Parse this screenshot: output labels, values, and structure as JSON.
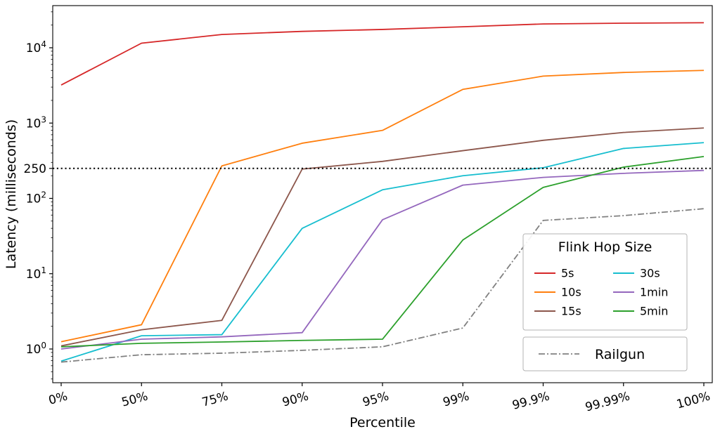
{
  "chart_data": {
    "type": "line",
    "title": "",
    "xlabel": "Percentile",
    "ylabel": "Latency (milliseconds)",
    "x_categories": [
      "0%",
      "50%",
      "75%",
      "90%",
      "95%",
      "99%",
      "99.9%",
      "99.99%",
      "100%"
    ],
    "y_scale": "log",
    "ylim": [
      0.36,
      36000
    ],
    "grid": false,
    "y_major_ticks": [
      {
        "value": 1,
        "label_base": "10",
        "label_exp": "0"
      },
      {
        "value": 10,
        "label_base": "10",
        "label_exp": "1"
      },
      {
        "value": 100,
        "label_base": "10",
        "label_exp": "2"
      },
      {
        "value": 250,
        "label": "250"
      },
      {
        "value": 1000,
        "label_base": "10",
        "label_exp": "3"
      },
      {
        "value": 10000,
        "label_base": "10",
        "label_exp": "4"
      }
    ],
    "threshold_line": {
      "value": 250,
      "style": "dotted",
      "color": "#111111"
    },
    "series": [
      {
        "name": "5s",
        "color": "#d62728",
        "dash": "solid",
        "values": [
          3200,
          11500,
          15000,
          16500,
          17500,
          19000,
          20700,
          21200,
          21500
        ]
      },
      {
        "name": "10s",
        "color": "#ff7f0e",
        "dash": "solid",
        "values": [
          1.25,
          2.1,
          270,
          540,
          800,
          2800,
          4200,
          4700,
          5000
        ]
      },
      {
        "name": "15s",
        "color": "#8c564b",
        "dash": "solid",
        "values": [
          1.1,
          1.8,
          2.4,
          245,
          310,
          430,
          590,
          750,
          860
        ]
      },
      {
        "name": "30s",
        "color": "#17becf",
        "dash": "solid",
        "values": [
          0.69,
          1.5,
          1.55,
          40,
          130,
          200,
          255,
          460,
          550
        ]
      },
      {
        "name": "1min",
        "color": "#9467bd",
        "dash": "solid",
        "values": [
          1.0,
          1.35,
          1.45,
          1.65,
          52,
          150,
          190,
          215,
          235
        ]
      },
      {
        "name": "5min",
        "color": "#2ca02c",
        "dash": "solid",
        "values": [
          1.07,
          1.19,
          1.24,
          1.3,
          1.35,
          28,
          140,
          260,
          360
        ]
      },
      {
        "name": "Railgun",
        "color": "#808080",
        "dash": "dashdot",
        "values": [
          0.67,
          0.84,
          0.88,
          0.96,
          1.07,
          1.9,
          51,
          59,
          73
        ]
      }
    ],
    "legend": {
      "title": "Flink Hop Size",
      "entries": [
        "5s",
        "10s",
        "15s",
        "30s",
        "1min",
        "5min"
      ],
      "position": "lower right",
      "columns": 2
    },
    "legend2": {
      "entries": [
        "Railgun"
      ],
      "position": "below main legend"
    }
  }
}
